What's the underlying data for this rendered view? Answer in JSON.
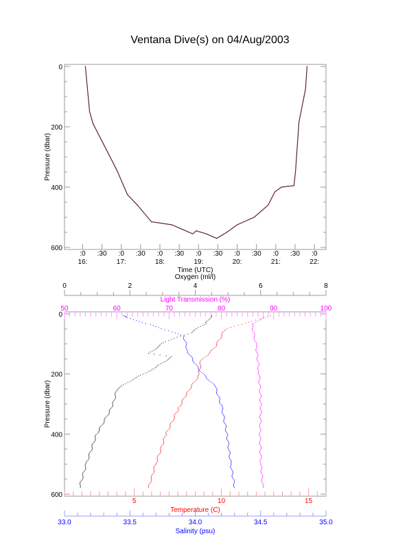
{
  "title": "Ventana Dive(s) on 04/Aug/2003",
  "chart_data": [
    {
      "type": "line",
      "title": "Ventana Dive(s) on 04/Aug/2003",
      "xlabel": "Time (UTC)",
      "ylabel": "Pressure (dbar)",
      "xlim": [
        15.53,
        22.3
      ],
      "ylim": [
        600,
        0
      ],
      "xticks": [
        {
          "v": 16.0,
          "top": ":0",
          "bot": "16:"
        },
        {
          "v": 16.5,
          "top": ":30",
          "bot": ""
        },
        {
          "v": 17.0,
          "top": ":0",
          "bot": "17:"
        },
        {
          "v": 17.5,
          "top": ":30",
          "bot": ""
        },
        {
          "v": 18.0,
          "top": ":0",
          "bot": "18:"
        },
        {
          "v": 18.5,
          "top": ":30",
          "bot": ""
        },
        {
          "v": 19.0,
          "top": ":0",
          "bot": "19:"
        },
        {
          "v": 19.5,
          "top": ":30",
          "bot": ""
        },
        {
          "v": 20.0,
          "top": ":0",
          "bot": "20:"
        },
        {
          "v": 20.5,
          "top": ":30",
          "bot": ""
        },
        {
          "v": 21.0,
          "top": ":0",
          "bot": "21:"
        },
        {
          "v": 21.5,
          "top": ":30",
          "bot": ""
        },
        {
          "v": 22.0,
          "top": ":0",
          "bot": "22:"
        }
      ],
      "yticks": [
        "0",
        "200",
        "400",
        "600"
      ],
      "series": [
        {
          "name": "Pressure",
          "color": "#cc0000",
          "points": [
            [
              16.07,
              0
            ],
            [
              16.18,
              150
            ],
            [
              16.27,
              190
            ],
            [
              16.53,
              255
            ],
            [
              16.89,
              345
            ],
            [
              17.16,
              425
            ],
            [
              17.42,
              460
            ],
            [
              17.78,
              515
            ],
            [
              18.31,
              525
            ],
            [
              18.67,
              545
            ],
            [
              18.85,
              555
            ],
            [
              18.94,
              545
            ],
            [
              19.2,
              555
            ],
            [
              19.47,
              570
            ],
            [
              19.73,
              550
            ],
            [
              20.0,
              525
            ],
            [
              20.44,
              500
            ],
            [
              20.8,
              460
            ],
            [
              20.98,
              415
            ],
            [
              21.15,
              400
            ],
            [
              21.47,
              395
            ],
            [
              21.51,
              350
            ],
            [
              21.6,
              185
            ],
            [
              21.77,
              75
            ],
            [
              21.81,
              0
            ]
          ]
        }
      ]
    },
    {
      "type": "scatter",
      "ylabel": "Pressure (dbar)",
      "ylim": [
        600,
        0
      ],
      "yticks": [
        "0",
        "200",
        "400",
        "600"
      ],
      "axes": {
        "oxygen": {
          "label": "Oxygen (ml/l)",
          "range": [
            0,
            8
          ],
          "ticks": [
            "0",
            "2",
            "4",
            "6",
            "8"
          ],
          "color": "#000000"
        },
        "light": {
          "label": "Light Transmission (%)",
          "range": [
            50,
            100
          ],
          "ticks": [
            "50",
            "60",
            "70",
            "80",
            "90",
            "100"
          ],
          "color": "#ff00ff"
        },
        "temperature": {
          "label": "Temperature (C)",
          "range": [
            1,
            16
          ],
          "ticks": [
            "5",
            "10",
            "15"
          ],
          "color": "#ff0000"
        },
        "salinity": {
          "label": "Salinity (psu)",
          "range": [
            33.0,
            35.0
          ],
          "ticks": [
            "33.0",
            "33.5",
            "34.0",
            "34.5",
            "35.0"
          ],
          "color": "#0000ff"
        }
      },
      "series": [
        {
          "name": "Oxygen",
          "axis": "oxygen",
          "color": "#000000",
          "points": [
            [
              4.5,
              5
            ],
            [
              4.3,
              30
            ],
            [
              3.85,
              62
            ],
            [
              3.07,
              91
            ],
            [
              2.58,
              130
            ],
            [
              3.28,
              141
            ],
            [
              2.71,
              182
            ],
            [
              2.08,
              217
            ],
            [
              1.6,
              249
            ],
            [
              1.45,
              308
            ],
            [
              0.97,
              400
            ],
            [
              0.65,
              500
            ],
            [
              0.44,
              580
            ]
          ]
        },
        {
          "name": "Temperature",
          "axis": "temperature",
          "color": "#ff0000",
          "points": [
            [
              12.8,
              5
            ],
            [
              11.5,
              27
            ],
            [
              10.2,
              50
            ],
            [
              9.6,
              111
            ],
            [
              8.8,
              157
            ],
            [
              8.7,
              203
            ],
            [
              8.0,
              262
            ],
            [
              7.5,
              316
            ],
            [
              6.8,
              400
            ],
            [
              6.2,
              500
            ],
            [
              5.8,
              580
            ]
          ]
        },
        {
          "name": "Salinity",
          "axis": "salinity",
          "color": "#0000ff",
          "points": [
            [
              33.45,
              5
            ],
            [
              33.47,
              11
            ],
            [
              33.65,
              34
            ],
            [
              33.91,
              73
            ],
            [
              33.94,
              125
            ],
            [
              34.03,
              187
            ],
            [
              34.15,
              240
            ],
            [
              34.2,
              308
            ],
            [
              34.24,
              400
            ],
            [
              34.27,
              500
            ],
            [
              34.3,
              580
            ]
          ]
        },
        {
          "name": "Light Transmission",
          "axis": "light",
          "color": "#ff00ff",
          "points": [
            [
              88,
              10
            ],
            [
              85.8,
              34
            ],
            [
              86.6,
              107
            ],
            [
              87.1,
              187
            ],
            [
              87.5,
              308
            ],
            [
              87.3,
              400
            ],
            [
              87.5,
              500
            ],
            [
              87.9,
              580
            ]
          ]
        }
      ]
    }
  ]
}
